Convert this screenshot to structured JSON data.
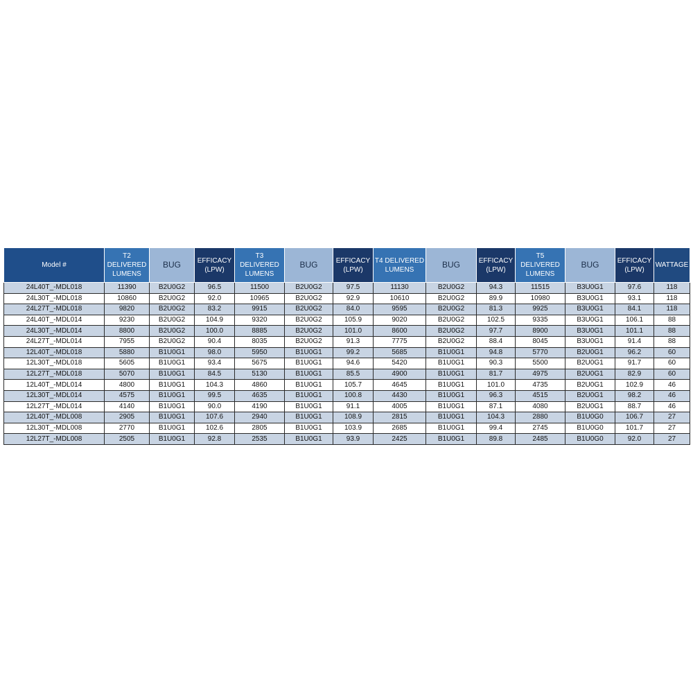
{
  "headers": [
    "Model #",
    "T2 DELIVERED LUMENS",
    "BUG",
    "EFFICACY (LPW)",
    "T3 DELIVERED LUMENS",
    "BUG",
    "EFFICACY (LPW)",
    "T4 DELIVERED LUMENS",
    "BUG",
    "EFFICACY (LPW)",
    "T5 DELIVERED LUMENS",
    "BUG",
    "EFFICACY (LPW)",
    "WATTAGE"
  ],
  "header_lines": [
    [
      "Model #"
    ],
    [
      "T2",
      "DELIVERED",
      "LUMENS"
    ],
    [
      "BUG"
    ],
    [
      "EFFICACY",
      "(LPW)"
    ],
    [
      "T3",
      "DELIVERED",
      "LUMENS"
    ],
    [
      "BUG"
    ],
    [
      "EFFICACY",
      "(LPW)"
    ],
    [
      "T4 DELIVERED",
      "LUMENS"
    ],
    [
      "BUG"
    ],
    [
      "EFFICACY",
      "(LPW)"
    ],
    [
      "T5 DELIVERED",
      "LUMENS"
    ],
    [
      "BUG"
    ],
    [
      "EFFICACY",
      "(LPW)"
    ],
    [
      "WATTAGE"
    ]
  ],
  "rows": [
    [
      "24L40T_-MDL018",
      "11390",
      "B2U0G2",
      "96.5",
      "11500",
      "B2U0G2",
      "97.5",
      "11130",
      "B2U0G2",
      "94.3",
      "11515",
      "B3U0G1",
      "97.6",
      "118"
    ],
    [
      "24L30T_-MDL018",
      "10860",
      "B2U0G2",
      "92.0",
      "10965",
      "B2U0G2",
      "92.9",
      "10610",
      "B2U0G2",
      "89.9",
      "10980",
      "B3U0G1",
      "93.1",
      "118"
    ],
    [
      "24L27T_-MDL018",
      "9820",
      "B2U0G2",
      "83.2",
      "9915",
      "B2U0G2",
      "84.0",
      "9595",
      "B2U0G2",
      "81.3",
      "9925",
      "B3U0G1",
      "84.1",
      "118"
    ],
    [
      "24L40T_-MDL014",
      "9230",
      "B2U0G2",
      "104.9",
      "9320",
      "B2U0G2",
      "105.9",
      "9020",
      "B2U0G2",
      "102.5",
      "9335",
      "B3U0G1",
      "106.1",
      "88"
    ],
    [
      "24L30T_-MDL014",
      "8800",
      "B2U0G2",
      "100.0",
      "8885",
      "B2U0G2",
      "101.0",
      "8600",
      "B2U0G2",
      "97.7",
      "8900",
      "B3U0G1",
      "101.1",
      "88"
    ],
    [
      "24L27T_-MDL014",
      "7955",
      "B2U0G2",
      "90.4",
      "8035",
      "B2U0G2",
      "91.3",
      "7775",
      "B2U0G2",
      "88.4",
      "8045",
      "B3U0G1",
      "91.4",
      "88"
    ],
    [
      "12L40T_-MDL018",
      "5880",
      "B1U0G1",
      "98.0",
      "5950",
      "B1U0G1",
      "99.2",
      "5685",
      "B1U0G1",
      "94.8",
      "5770",
      "B2U0G1",
      "96.2",
      "60"
    ],
    [
      "12L30T_-MDL018",
      "5605",
      "B1U0G1",
      "93.4",
      "5675",
      "B1U0G1",
      "94.6",
      "5420",
      "B1U0G1",
      "90.3",
      "5500",
      "B2U0G1",
      "91.7",
      "60"
    ],
    [
      "12L27T_-MDL018",
      "5070",
      "B1U0G1",
      "84.5",
      "5130",
      "B1U0G1",
      "85.5",
      "4900",
      "B1U0G1",
      "81.7",
      "4975",
      "B2U0G1",
      "82.9",
      "60"
    ],
    [
      "12L40T_-MDL014",
      "4800",
      "B1U0G1",
      "104.3",
      "4860",
      "B1U0G1",
      "105.7",
      "4645",
      "B1U0G1",
      "101.0",
      "4735",
      "B2U0G1",
      "102.9",
      "46"
    ],
    [
      "12L30T_-MDL014",
      "4575",
      "B1U0G1",
      "99.5",
      "4635",
      "B1U0G1",
      "100.8",
      "4430",
      "B1U0G1",
      "96.3",
      "4515",
      "B2U0G1",
      "98.2",
      "46"
    ],
    [
      "12L27T_-MDL014",
      "4140",
      "B1U0G1",
      "90.0",
      "4190",
      "B1U0G1",
      "91.1",
      "4005",
      "B1U0G1",
      "87.1",
      "4080",
      "B2U0G1",
      "88.7",
      "46"
    ],
    [
      "12L40T_-MDL008",
      "2905",
      "B1U0G1",
      "107.6",
      "2940",
      "B1U0G1",
      "108.9",
      "2815",
      "B1U0G1",
      "104.3",
      "2880",
      "B1U0G0",
      "106.7",
      "27"
    ],
    [
      "12L30T_-MDL008",
      "2770",
      "B1U0G1",
      "102.6",
      "2805",
      "B1U0G1",
      "103.9",
      "2685",
      "B1U0G1",
      "99.4",
      "2745",
      "B1U0G0",
      "101.7",
      "27"
    ],
    [
      "12L27T_-MDL008",
      "2505",
      "B1U0G1",
      "92.8",
      "2535",
      "B1U0G1",
      "93.9",
      "2425",
      "B1U0G1",
      "89.8",
      "2485",
      "B1U0G0",
      "92.0",
      "27"
    ]
  ],
  "colors": {
    "model_header": "#1f4e8a",
    "lumens_header": "#3673b3",
    "bug_header": "#9cb6d6",
    "efficacy_header": "#1b3868",
    "wattage_header": "#204a80",
    "row_shade": "#c8d4e3",
    "row_plain": "#ffffff"
  }
}
